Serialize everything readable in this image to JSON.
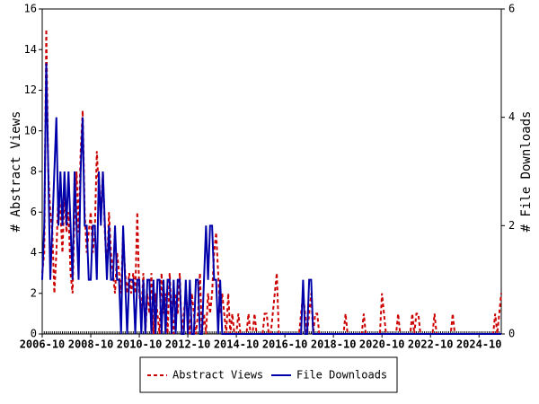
{
  "chart_data": {
    "type": "line",
    "y_label": "# Abstract Views",
    "y2_label": "# File Downloads",
    "x": [
      "2006-10",
      "2006-11",
      "2006-12",
      "2007-01",
      "2007-02",
      "2007-03",
      "2007-04",
      "2007-05",
      "2007-06",
      "2007-07",
      "2007-08",
      "2007-09",
      "2007-10",
      "2007-11",
      "2007-12",
      "2008-01",
      "2008-02",
      "2008-03",
      "2008-04",
      "2008-05",
      "2008-06",
      "2008-07",
      "2008-08",
      "2008-09",
      "2008-10",
      "2008-11",
      "2008-12",
      "2009-01",
      "2009-02",
      "2009-03",
      "2009-04",
      "2009-05",
      "2009-06",
      "2009-07",
      "2009-08",
      "2009-09",
      "2009-10",
      "2009-11",
      "2009-12",
      "2010-01",
      "2010-02",
      "2010-03",
      "2010-04",
      "2010-05",
      "2010-06",
      "2010-07",
      "2010-08",
      "2010-09",
      "2010-10",
      "2010-11",
      "2010-12",
      "2011-01",
      "2011-02",
      "2011-03",
      "2011-04",
      "2011-05",
      "2011-06",
      "2011-07",
      "2011-08",
      "2011-09",
      "2011-10",
      "2011-11",
      "2011-12",
      "2012-01",
      "2012-02",
      "2012-03",
      "2012-04",
      "2012-05",
      "2012-06",
      "2012-07",
      "2012-08",
      "2012-09",
      "2012-10",
      "2012-11",
      "2012-12",
      "2013-01",
      "2013-02",
      "2013-03",
      "2013-04",
      "2013-05",
      "2013-06",
      "2013-07",
      "2013-08",
      "2013-09",
      "2013-10",
      "2013-11",
      "2013-12",
      "2014-01",
      "2014-02",
      "2014-03",
      "2014-04",
      "2014-05",
      "2014-06",
      "2014-07",
      "2014-08",
      "2014-09",
      "2014-10",
      "2014-11",
      "2014-12",
      "2015-01",
      "2015-02",
      "2015-03",
      "2015-04",
      "2015-05",
      "2015-06",
      "2015-07",
      "2015-08",
      "2015-09",
      "2015-10",
      "2015-11",
      "2015-12",
      "2016-01",
      "2016-02",
      "2016-03",
      "2016-04",
      "2016-05",
      "2016-06",
      "2016-07",
      "2016-08",
      "2016-09",
      "2016-10",
      "2016-11",
      "2016-12",
      "2017-01",
      "2017-02",
      "2017-03",
      "2017-04",
      "2017-05",
      "2017-06",
      "2017-07",
      "2017-08",
      "2017-09",
      "2017-10",
      "2017-11",
      "2017-12",
      "2018-01",
      "2018-02",
      "2018-03",
      "2018-04",
      "2018-05",
      "2018-06",
      "2018-07",
      "2018-08",
      "2018-09",
      "2018-10",
      "2018-11",
      "2018-12",
      "2019-01",
      "2019-02",
      "2019-03",
      "2019-04",
      "2019-05",
      "2019-06",
      "2019-07",
      "2019-08",
      "2019-09",
      "2019-10",
      "2019-11",
      "2019-12",
      "2020-01",
      "2020-02",
      "2020-03",
      "2020-04",
      "2020-05",
      "2020-06",
      "2020-07",
      "2020-08",
      "2020-09",
      "2020-10",
      "2020-11",
      "2020-12",
      "2021-01",
      "2021-02",
      "2021-03",
      "2021-04",
      "2021-05",
      "2021-06",
      "2021-07",
      "2021-08",
      "2021-09",
      "2021-10",
      "2021-11",
      "2021-12",
      "2022-01",
      "2022-02",
      "2022-03",
      "2022-04",
      "2022-05",
      "2022-06",
      "2022-07",
      "2022-08",
      "2022-09",
      "2022-10",
      "2022-11",
      "2022-12",
      "2023-01",
      "2023-02",
      "2023-03",
      "2023-04",
      "2023-05",
      "2023-06",
      "2023-07",
      "2023-08",
      "2023-09",
      "2023-10",
      "2023-11",
      "2023-12",
      "2024-01",
      "2024-02",
      "2024-03",
      "2024-04",
      "2024-05",
      "2024-06",
      "2024-07",
      "2024-08",
      "2024-09",
      "2024-10",
      "2024-11",
      "2024-12",
      "2025-01",
      "2025-02",
      "2025-03",
      "2025-04",
      "2025-05",
      "2025-06",
      "2025-07",
      "2025-08",
      "2025-09"
    ],
    "xticks": [
      "2006-10",
      "2008-10",
      "2010-10",
      "2012-10",
      "2014-10",
      "2016-10",
      "2018-10",
      "2020-10",
      "2022-10",
      "2024-10"
    ],
    "ylim": [
      0,
      16
    ],
    "yticks": [
      0,
      2,
      4,
      6,
      8,
      10,
      12,
      14,
      16
    ],
    "y2lim": [
      0,
      6
    ],
    "y2ticks": [
      0,
      2,
      4,
      6
    ],
    "series": [
      {
        "name": "Abstract Views",
        "color": "#cc0000",
        "dashed": true,
        "values": [
          3,
          4,
          15,
          8,
          6,
          5,
          2,
          4,
          7,
          6,
          4,
          7,
          5,
          6,
          3,
          2,
          6,
          8,
          5,
          9,
          11,
          6,
          4,
          5,
          6,
          4,
          5,
          9,
          7,
          6,
          8,
          5,
          3,
          6,
          4,
          3,
          2,
          4,
          3,
          2,
          5,
          3,
          2,
          3,
          2,
          3,
          2,
          6,
          2,
          1,
          3,
          0,
          2,
          1,
          3,
          0,
          2,
          1,
          0,
          3,
          1,
          2,
          0,
          3,
          1,
          0,
          2,
          1,
          3,
          0,
          1,
          2,
          1,
          0,
          2,
          1,
          0,
          1,
          3,
          0,
          1,
          0,
          2,
          1,
          2,
          4,
          5,
          3,
          1,
          2,
          1,
          0,
          2,
          0,
          1,
          0,
          0,
          1,
          0,
          0,
          0,
          0,
          1,
          0,
          0,
          1,
          0,
          0,
          0,
          0,
          1,
          1,
          0,
          0,
          1,
          2,
          3,
          0,
          0,
          0,
          0,
          0,
          0,
          0,
          0,
          0,
          0,
          0,
          1,
          2,
          1,
          0,
          1,
          2,
          0,
          1,
          1,
          0,
          0,
          0,
          0,
          0,
          0,
          0,
          0,
          0,
          0,
          0,
          0,
          0,
          1,
          0,
          0,
          0,
          0,
          0,
          0,
          0,
          0,
          1,
          0,
          0,
          0,
          0,
          0,
          0,
          0,
          0,
          2,
          1,
          0,
          0,
          0,
          0,
          0,
          0,
          1,
          0,
          0,
          0,
          0,
          0,
          0,
          1,
          0,
          1,
          1,
          0,
          0,
          0,
          0,
          0,
          0,
          0,
          1,
          0,
          0,
          0,
          0,
          0,
          0,
          0,
          0,
          1,
          0,
          0,
          0,
          0,
          0,
          0,
          0,
          0,
          0,
          0,
          0,
          0,
          0,
          0,
          0,
          0,
          0,
          0,
          0,
          0,
          1,
          0,
          1,
          2
        ]
      },
      {
        "name": "File Downloads",
        "color": "#0000aa",
        "axis": "y2",
        "values": [
          1,
          2,
          5,
          3,
          1,
          2,
          3,
          4,
          2,
          3,
          2,
          3,
          2,
          3,
          2,
          1,
          3,
          2,
          1,
          3,
          4,
          2,
          2,
          1,
          1,
          2,
          2,
          1,
          3,
          2,
          3,
          2,
          1,
          2,
          1,
          1,
          2,
          1,
          1,
          0,
          2,
          1,
          0,
          1,
          1,
          1,
          0,
          1,
          1,
          0,
          1,
          0,
          1,
          1,
          0,
          1,
          0,
          1,
          1,
          0,
          1,
          0,
          1,
          1,
          0,
          1,
          0,
          1,
          1,
          0,
          0,
          1,
          0,
          1,
          0,
          0,
          1,
          1,
          0,
          0,
          1,
          2,
          1,
          2,
          2,
          1,
          1,
          0,
          1,
          0,
          0,
          0,
          0,
          0,
          0,
          0,
          0,
          0,
          0,
          0,
          0,
          0,
          0,
          0,
          0,
          0,
          0,
          0,
          0,
          0,
          0,
          0,
          0,
          0,
          0,
          0,
          0,
          0,
          0,
          0,
          0,
          0,
          0,
          0,
          0,
          0,
          0,
          0,
          0,
          1,
          0,
          0,
          1,
          1,
          0,
          0,
          0,
          0,
          0,
          0,
          0,
          0,
          0,
          0,
          0,
          0,
          0,
          0,
          0,
          0,
          0,
          0,
          0,
          0,
          0,
          0,
          0,
          0,
          0,
          0,
          0,
          0,
          0,
          0,
          0,
          0,
          0,
          0,
          0,
          0,
          0,
          0,
          0,
          0,
          0,
          0,
          0,
          0,
          0,
          0,
          0,
          0,
          0,
          0,
          0,
          0,
          0,
          0,
          0,
          0,
          0,
          0,
          0,
          0,
          0,
          0,
          0,
          0,
          0,
          0,
          0,
          0,
          0,
          0,
          0,
          0,
          0,
          0,
          0,
          0,
          0,
          0,
          0,
          0,
          0,
          0,
          0,
          0,
          0,
          0,
          0,
          0,
          0,
          0,
          0,
          0,
          0,
          0
        ]
      }
    ]
  }
}
